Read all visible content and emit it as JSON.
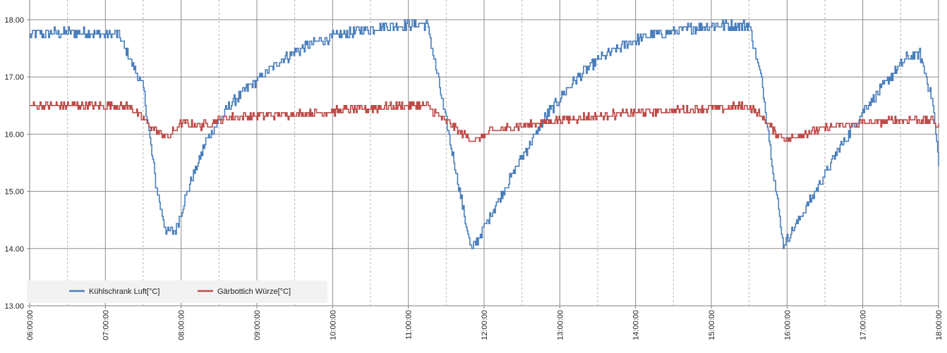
{
  "chart_data": {
    "type": "line",
    "title": "",
    "xlabel": "",
    "ylabel": "",
    "ylim": [
      13.0,
      18.0
    ],
    "y_ticks": [
      "13.00",
      "14.00",
      "15.00",
      "16.00",
      "17.00",
      "18.00"
    ],
    "xlim": [
      "06:00:00",
      "18:00:00"
    ],
    "x_ticks": [
      "06:00:00",
      "07:00:00",
      "08:00:00",
      "09:00:00",
      "10:00:00",
      "11:00:00",
      "12:00:00",
      "13:00:00",
      "14:00:00",
      "15:00:00",
      "16:00:00",
      "17:00:00",
      "18:00:00"
    ],
    "grid": true,
    "legend_position": "bottom-left",
    "series": [
      {
        "name": "Kühlschrank Luft[°C]",
        "color": "#4a7ebb",
        "x": [
          "06:00:00",
          "06:30:00",
          "07:00:00",
          "07:10:00",
          "07:30:00",
          "07:40:00",
          "07:48:00",
          "07:55:00",
          "08:05:00",
          "08:20:00",
          "08:40:00",
          "09:00:00",
          "09:20:00",
          "09:40:00",
          "10:00:00",
          "10:30:00",
          "11:00:00",
          "11:15:00",
          "11:30:00",
          "11:45:00",
          "11:50:00",
          "12:10:00",
          "12:30:00",
          "12:50:00",
          "13:10:00",
          "13:30:00",
          "13:50:00",
          "14:10:00",
          "14:30:00",
          "15:00:00",
          "15:30:00",
          "15:40:00",
          "15:50:00",
          "15:57:00",
          "16:20:00",
          "16:40:00",
          "17:00:00",
          "17:20:00",
          "17:35:00",
          "17:45:00",
          "17:55:00",
          "18:00:00"
        ],
        "values": [
          17.75,
          17.78,
          17.75,
          17.75,
          16.8,
          15.1,
          14.3,
          14.3,
          15.0,
          15.9,
          16.55,
          16.95,
          17.3,
          17.55,
          17.7,
          17.85,
          17.92,
          17.92,
          16.2,
          14.5,
          13.95,
          14.8,
          15.6,
          16.35,
          16.9,
          17.3,
          17.55,
          17.72,
          17.8,
          17.9,
          17.9,
          16.9,
          15.2,
          14.05,
          14.9,
          15.7,
          16.4,
          16.95,
          17.35,
          17.4,
          16.6,
          15.5
        ]
      },
      {
        "name": "Gärbottich Würze[°C]",
        "color": "#be4b48",
        "x": [
          "06:00:00",
          "07:00:00",
          "07:20:00",
          "07:30:00",
          "07:40:00",
          "07:50:00",
          "08:00:00",
          "08:15:00",
          "08:40:00",
          "09:30:00",
          "10:30:00",
          "11:00:00",
          "11:15:00",
          "11:25:00",
          "11:40:00",
          "11:52:00",
          "12:05:00",
          "12:30:00",
          "13:00:00",
          "14:00:00",
          "15:00:00",
          "15:30:00",
          "15:40:00",
          "15:50:00",
          "16:00:00",
          "16:10:00",
          "16:30:00",
          "17:00:00",
          "17:30:00",
          "17:55:00",
          "18:00:00"
        ],
        "values": [
          16.5,
          16.5,
          16.48,
          16.25,
          16.05,
          15.95,
          16.2,
          16.15,
          16.3,
          16.35,
          16.45,
          16.5,
          16.5,
          16.3,
          16.05,
          15.88,
          16.05,
          16.15,
          16.25,
          16.38,
          16.45,
          16.48,
          16.3,
          16.05,
          15.9,
          16.0,
          16.1,
          16.2,
          16.25,
          16.25,
          16.1
        ]
      }
    ]
  }
}
